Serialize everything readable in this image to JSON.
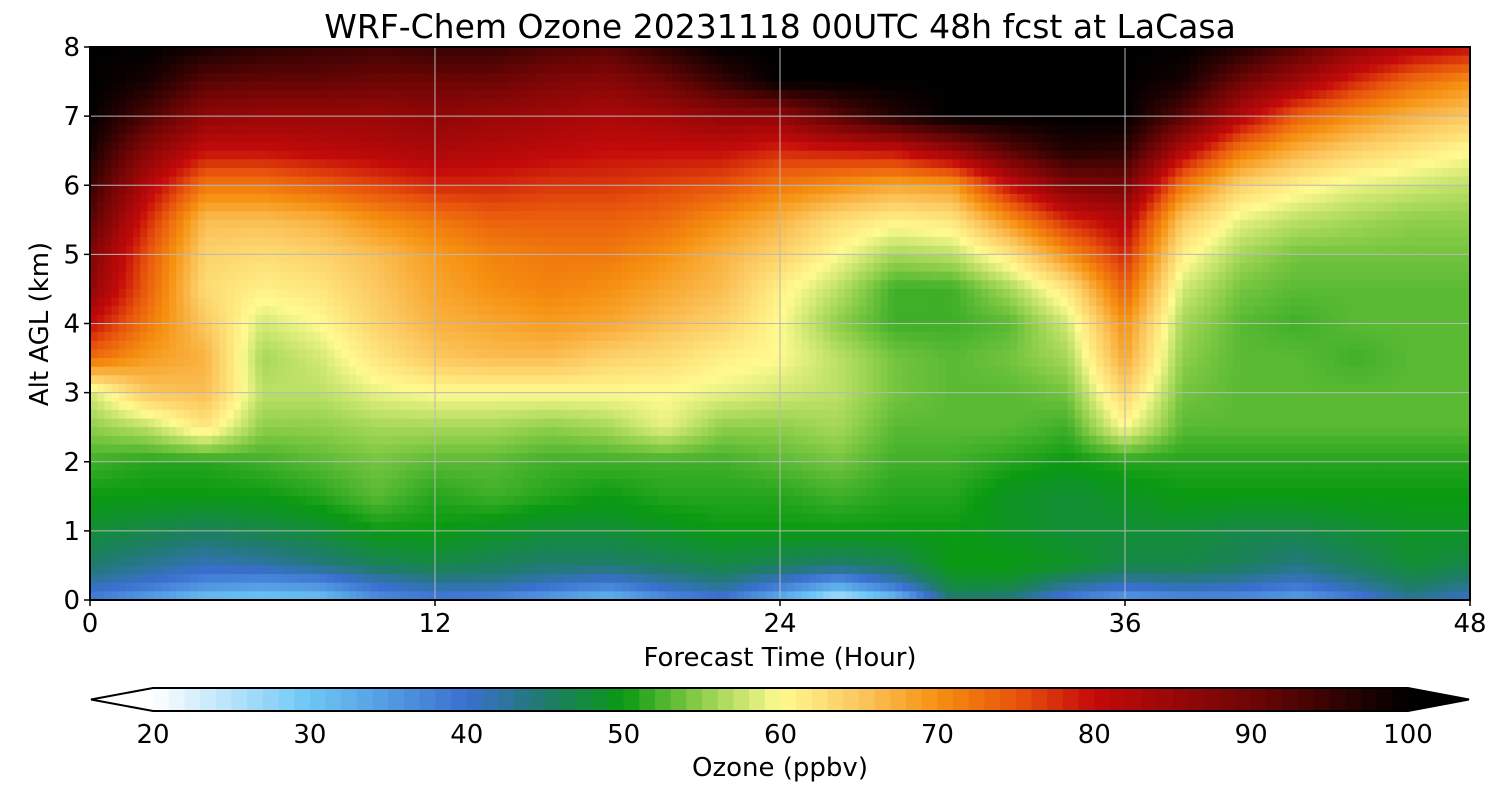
{
  "chart_data": {
    "type": "heatmap",
    "title": "WRF-Chem Ozone  20231118 00UTC 48h fcst at LaCasa",
    "xlabel": "Forecast Time (Hour)",
    "ylabel": "Alt AGL (km)",
    "xlim": [
      0,
      48
    ],
    "ylim": [
      0,
      8
    ],
    "xticks": [
      0,
      12,
      24,
      36,
      48
    ],
    "yticks": [
      0,
      1,
      2,
      3,
      4,
      5,
      6,
      7,
      8
    ],
    "grid": true,
    "colorbar": {
      "label": "Ozone  (ppbv)",
      "ticks": [
        20,
        30,
        40,
        50,
        60,
        70,
        80,
        90,
        100
      ],
      "range": [
        20,
        100
      ],
      "extend": "both",
      "stops": [
        {
          "v": 20,
          "c": "#ffffff"
        },
        {
          "v": 30,
          "c": "#6cc6f5"
        },
        {
          "v": 40,
          "c": "#3a6fcf"
        },
        {
          "v": 45,
          "c": "#1f7b6c"
        },
        {
          "v": 50,
          "c": "#0a9a12"
        },
        {
          "v": 55,
          "c": "#8fcf4a"
        },
        {
          "v": 60,
          "c": "#fffa90"
        },
        {
          "v": 65,
          "c": "#fcc860"
        },
        {
          "v": 70,
          "c": "#f69010"
        },
        {
          "v": 75,
          "c": "#e8540c"
        },
        {
          "v": 80,
          "c": "#c40a0a"
        },
        {
          "v": 90,
          "c": "#6e0505"
        },
        {
          "v": 100,
          "c": "#000000"
        }
      ]
    },
    "x_hours": [
      0,
      2,
      4,
      6,
      8,
      10,
      12,
      14,
      16,
      18,
      20,
      22,
      24,
      26,
      28,
      30,
      32,
      34,
      36,
      38,
      40,
      42,
      44,
      46,
      48
    ],
    "alt_km": [
      0,
      0.25,
      0.5,
      1,
      1.5,
      2,
      2.5,
      3,
      3.5,
      4,
      4.5,
      5,
      5.5,
      6,
      6.5,
      7,
      7.5,
      8
    ],
    "ozone_ppbv": [
      [
        38,
        34,
        30,
        29,
        30,
        36,
        38,
        37,
        34,
        31,
        36,
        39,
        32,
        24,
        30,
        45,
        44,
        38,
        34,
        36,
        36,
        34,
        38,
        43,
        40
      ],
      [
        42,
        40,
        37,
        36,
        37,
        41,
        43,
        43,
        41,
        39,
        42,
        44,
        40,
        35,
        41,
        48,
        48,
        44,
        42,
        43,
        42,
        40,
        43,
        46,
        44
      ],
      [
        45,
        43,
        41,
        42,
        44,
        46,
        47,
        46,
        45,
        45,
        46,
        47,
        46,
        45,
        46,
        50,
        50,
        49,
        47,
        47,
        46,
        44,
        46,
        48,
        47
      ],
      [
        48,
        47,
        46,
        47,
        48,
        50,
        50,
        49,
        48,
        48,
        49,
        50,
        50,
        50,
        50,
        50,
        49,
        48,
        48,
        48,
        47,
        47,
        48,
        49,
        49
      ],
      [
        50,
        50,
        50,
        50,
        51,
        53,
        51,
        52,
        51,
        50,
        51,
        51,
        51,
        52,
        51,
        51,
        49,
        48,
        49,
        50,
        50,
        50,
        50,
        50,
        50
      ],
      [
        52,
        51,
        51,
        52,
        53,
        54,
        53,
        53,
        52,
        52,
        52,
        52,
        53,
        54,
        52,
        52,
        51,
        50,
        51,
        51,
        51,
        51,
        51,
        51,
        51
      ],
      [
        55,
        57,
        62,
        55,
        55,
        56,
        56,
        56,
        55,
        56,
        59,
        55,
        55,
        56,
        53,
        53,
        53,
        52,
        60,
        53,
        53,
        53,
        53,
        53,
        53
      ],
      [
        58,
        65,
        66,
        57,
        57,
        59,
        60,
        60,
        60,
        60,
        60,
        59,
        58,
        57,
        54,
        53,
        53,
        54,
        64,
        54,
        53,
        53,
        53,
        53,
        53
      ],
      [
        73,
        69,
        67,
        56,
        58,
        62,
        65,
        66,
        66,
        64,
        63,
        61,
        60,
        57,
        54,
        53,
        54,
        56,
        68,
        55,
        53,
        53,
        52,
        53,
        53
      ],
      [
        80,
        72,
        65,
        58,
        60,
        64,
        67,
        68,
        69,
        68,
        66,
        64,
        60,
        55,
        52,
        52,
        53,
        58,
        70,
        56,
        53,
        52,
        53,
        53,
        53
      ],
      [
        86,
        74,
        63,
        61,
        62,
        65,
        68,
        70,
        71,
        70,
        68,
        66,
        61,
        57,
        52,
        52,
        56,
        62,
        74,
        58,
        54,
        53,
        53,
        53,
        53
      ],
      [
        88,
        75,
        64,
        63,
        64,
        66,
        69,
        71,
        72,
        72,
        70,
        67,
        64,
        60,
        56,
        57,
        62,
        70,
        78,
        61,
        56,
        54,
        54,
        54,
        54
      ],
      [
        92,
        78,
        66,
        66,
        67,
        70,
        72,
        74,
        74,
        74,
        73,
        70,
        67,
        63,
        61,
        62,
        70,
        78,
        82,
        65,
        59,
        57,
        56,
        55,
        55
      ],
      [
        95,
        82,
        72,
        72,
        74,
        76,
        78,
        78,
        77,
        77,
        76,
        75,
        72,
        70,
        68,
        69,
        80,
        88,
        89,
        72,
        64,
        61,
        59,
        58,
        57
      ],
      [
        98,
        87,
        80,
        80,
        81,
        82,
        83,
        82,
        81,
        80,
        80,
        80,
        78,
        79,
        80,
        85,
        92,
        97,
        96,
        82,
        72,
        67,
        64,
        62,
        60
      ],
      [
        100,
        93,
        86,
        85,
        85,
        85,
        86,
        85,
        84,
        83,
        84,
        86,
        86,
        92,
        97,
        100,
        100,
        100,
        100,
        92,
        82,
        74,
        70,
        67,
        65
      ],
      [
        100,
        98,
        92,
        91,
        91,
        90,
        90,
        90,
        88,
        87,
        90,
        95,
        100,
        100,
        100,
        100,
        100,
        100,
        100,
        98,
        90,
        84,
        78,
        73,
        70
      ],
      [
        100,
        100,
        98,
        96,
        95,
        94,
        95,
        95,
        93,
        92,
        96,
        100,
        100,
        100,
        100,
        100,
        100,
        100,
        100,
        100,
        97,
        92,
        86,
        82,
        80
      ]
    ]
  }
}
